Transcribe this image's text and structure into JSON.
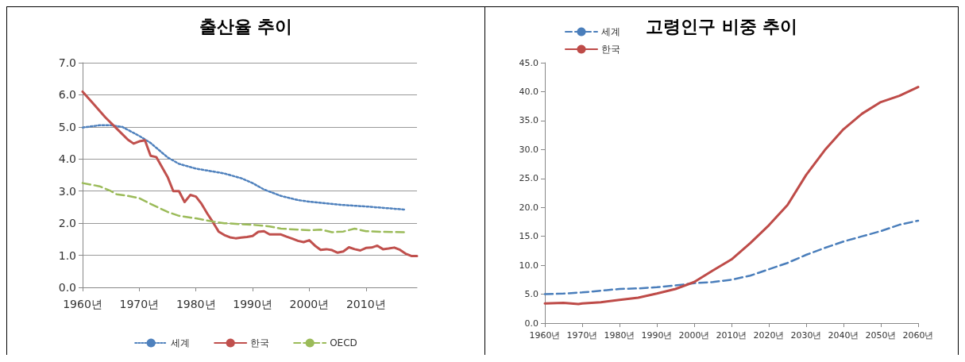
{
  "chart_data": [
    {
      "type": "line",
      "title": "출산율 추이",
      "xlim": [
        1960,
        2019
      ],
      "xticks": [
        {
          "value": 1960,
          "label": "1960년"
        },
        {
          "value": 1970,
          "label": "1970년"
        },
        {
          "value": 1980,
          "label": "1980년"
        },
        {
          "value": 1990,
          "label": "1990년"
        },
        {
          "value": 2000,
          "label": "2000년"
        },
        {
          "value": 2010,
          "label": "2010년"
        }
      ],
      "ylim": [
        0,
        7
      ],
      "yticks": [
        {
          "value": 0,
          "label": "0.0"
        },
        {
          "value": 1,
          "label": "1.0"
        },
        {
          "value": 2,
          "label": "2.0"
        },
        {
          "value": 3,
          "label": "3.0"
        },
        {
          "value": 4,
          "label": "4.0"
        },
        {
          "value": 5,
          "label": "5.0"
        },
        {
          "value": 6,
          "label": "6.0"
        },
        {
          "value": 7,
          "label": "7.0"
        }
      ],
      "grid": "y",
      "legend": "bottom",
      "marker": "none",
      "series": [
        {
          "name": "세계",
          "color": "#4f81bd",
          "line_style": "dotted",
          "x": [
            1960,
            1963,
            1965,
            1967,
            1970,
            1972,
            1975,
            1977,
            1980,
            1985,
            1988,
            1990,
            1992,
            1995,
            1998,
            2000,
            2005,
            2010,
            2015,
            2017
          ],
          "values": [
            4.98,
            5.05,
            5.05,
            5.0,
            4.72,
            4.5,
            4.05,
            3.85,
            3.7,
            3.55,
            3.4,
            3.25,
            3.05,
            2.85,
            2.72,
            2.67,
            2.58,
            2.52,
            2.45,
            2.42
          ]
        },
        {
          "name": "한국",
          "color": "#c0504d",
          "line_style": "solid",
          "x": [
            1960,
            1962,
            1964,
            1966,
            1968,
            1969,
            1970,
            1971,
            1972,
            1973,
            1975,
            1976,
            1977,
            1978,
            1979,
            1980,
            1981,
            1982,
            1983,
            1984,
            1985,
            1986,
            1987,
            1988,
            1989,
            1990,
            1991,
            1992,
            1993,
            1994,
            1995,
            1996,
            1997,
            1998,
            1999,
            2000,
            2001,
            2002,
            2003,
            2004,
            2005,
            2006,
            2007,
            2008,
            2009,
            2010,
            2011,
            2012,
            2013,
            2014,
            2015,
            2016,
            2017,
            2018,
            2019
          ],
          "values": [
            6.1,
            5.7,
            5.3,
            4.95,
            4.6,
            4.48,
            4.55,
            4.58,
            4.1,
            4.06,
            3.44,
            3.0,
            3.0,
            2.66,
            2.88,
            2.83,
            2.6,
            2.3,
            2.03,
            1.74,
            1.63,
            1.56,
            1.53,
            1.55,
            1.57,
            1.6,
            1.73,
            1.75,
            1.65,
            1.65,
            1.65,
            1.58,
            1.52,
            1.45,
            1.41,
            1.47,
            1.3,
            1.17,
            1.19,
            1.16,
            1.08,
            1.12,
            1.25,
            1.19,
            1.15,
            1.23,
            1.24,
            1.3,
            1.19,
            1.21,
            1.24,
            1.17,
            1.05,
            0.98,
            0.98
          ]
        },
        {
          "name": "OECD",
          "color": "#9bbb59",
          "line_style": "dashed",
          "x": [
            1960,
            1963,
            1965,
            1966,
            1968,
            1970,
            1972,
            1975,
            1977,
            1980,
            1983,
            1985,
            1990,
            1993,
            1995,
            2000,
            2002,
            2004,
            2006,
            2008,
            2010,
            2013,
            2017
          ],
          "values": [
            3.25,
            3.15,
            3.0,
            2.9,
            2.85,
            2.78,
            2.6,
            2.35,
            2.23,
            2.15,
            2.05,
            2.0,
            1.95,
            1.9,
            1.83,
            1.78,
            1.8,
            1.72,
            1.74,
            1.83,
            1.75,
            1.73,
            1.72
          ]
        }
      ]
    },
    {
      "type": "line",
      "title": "고령인구 비중 추이",
      "xlim": [
        1960,
        2060
      ],
      "xticks": [
        {
          "value": 1960,
          "label": "1960년"
        },
        {
          "value": 1970,
          "label": "1970년"
        },
        {
          "value": 1980,
          "label": "1980년"
        },
        {
          "value": 1990,
          "label": "1990년"
        },
        {
          "value": 2000,
          "label": "2000년"
        },
        {
          "value": 2010,
          "label": "2010년"
        },
        {
          "value": 2020,
          "label": "2020년"
        },
        {
          "value": 2030,
          "label": "2030년"
        },
        {
          "value": 2040,
          "label": "2040년"
        },
        {
          "value": 2050,
          "label": "2050년"
        },
        {
          "value": 2060,
          "label": "2060년"
        }
      ],
      "ylim": [
        0,
        45
      ],
      "yticks": [
        {
          "value": 0,
          "label": "0.0"
        },
        {
          "value": 5,
          "label": "5.0"
        },
        {
          "value": 10,
          "label": "10.0"
        },
        {
          "value": 15,
          "label": "15.0"
        },
        {
          "value": 20,
          "label": "20.0"
        },
        {
          "value": 25,
          "label": "25.0"
        },
        {
          "value": 30,
          "label": "30.0"
        },
        {
          "value": 35,
          "label": "35.0"
        },
        {
          "value": 40,
          "label": "40.0"
        },
        {
          "value": 45,
          "label": "45.0"
        }
      ],
      "grid": false,
      "legend": "top left",
      "marker": "none",
      "series": [
        {
          "name": "세계",
          "color": "#4a7ebb",
          "line_style": "dashed",
          "x": [
            1960,
            1965,
            1970,
            1975,
            1980,
            1985,
            1990,
            1995,
            2000,
            2005,
            2010,
            2015,
            2020,
            2025,
            2030,
            2035,
            2040,
            2045,
            2050,
            2055,
            2060
          ],
          "values": [
            5.0,
            5.1,
            5.3,
            5.6,
            5.9,
            6.0,
            6.2,
            6.5,
            6.9,
            7.1,
            7.5,
            8.2,
            9.3,
            10.4,
            11.8,
            13.0,
            14.1,
            15.0,
            15.9,
            17.0,
            17.7
          ]
        },
        {
          "name": "한국",
          "color": "#be4b48",
          "line_style": "solid",
          "x": [
            1960,
            1965,
            1969,
            1970,
            1975,
            1980,
            1985,
            1990,
            1995,
            2000,
            2005,
            2010,
            2015,
            2020,
            2025,
            2030,
            2035,
            2040,
            2045,
            2050,
            2055,
            2060
          ],
          "values": [
            3.4,
            3.5,
            3.3,
            3.4,
            3.6,
            4.0,
            4.4,
            5.1,
            5.9,
            7.1,
            9.1,
            11.0,
            13.8,
            16.9,
            20.4,
            25.6,
            29.9,
            33.5,
            36.2,
            38.2,
            39.3,
            40.8
          ]
        }
      ]
    }
  ]
}
